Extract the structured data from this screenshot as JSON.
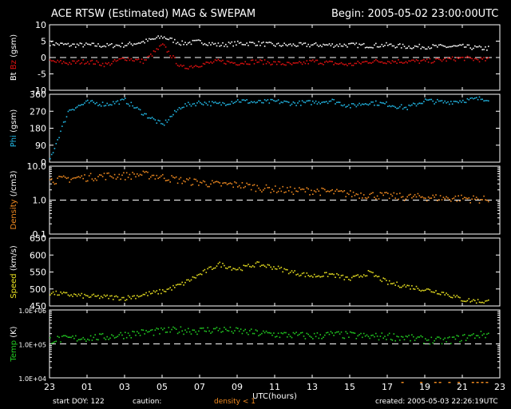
{
  "header": {
    "title": "ACE RTSW (Estimated) MAG & SWEPAM",
    "begin": "Begin: 2005-05-02 23:00:00UTC"
  },
  "footer": {
    "start_doy": "start DOY: 122",
    "caution": "caution:",
    "density_note": "density < 1",
    "created": "created: 2005-05-03 22:26:19UTC"
  },
  "colors": {
    "bt": "#ffffff",
    "bz": "#e01010",
    "phi": "#22b8e6",
    "density": "#f08a20",
    "speed": "#e8e020",
    "temp": "#22cc22",
    "axis": "#ffffff",
    "background": "#000000"
  },
  "chart_data": [
    {
      "type": "scatter",
      "ylabel_parts": [
        {
          "text": "Bt",
          "color": "#ffffff"
        },
        {
          "text": " ",
          "color": "#ffffff"
        },
        {
          "text": "Bz",
          "color": "#e01010"
        },
        {
          "text": " (gsm)",
          "color": "#ffffff"
        }
      ],
      "ylim": [
        -10,
        10
      ],
      "scale": "linear",
      "yticks": [
        10,
        5,
        0,
        -5,
        -10
      ],
      "tick_labels": [
        "10",
        "5",
        "0",
        "-5",
        "-10"
      ],
      "ref_lines": [
        0
      ],
      "series": [
        {
          "name": "Bt",
          "x": [
            0,
            1,
            2,
            3,
            4,
            5,
            6,
            7,
            8,
            9,
            10,
            11,
            12,
            13,
            14,
            15,
            16,
            17,
            18,
            19,
            20,
            21,
            22,
            23
          ],
          "values": [
            4.5,
            4,
            4,
            3.8,
            4,
            5,
            6.5,
            4.5,
            5,
            4,
            4.5,
            4.5,
            4,
            4,
            4,
            4,
            4,
            3.8,
            4,
            3.5,
            3.5,
            3.5,
            3.5,
            3
          ]
        },
        {
          "name": "Bz",
          "x": [
            0,
            1,
            2,
            3,
            4,
            5,
            6,
            7,
            8,
            9,
            10,
            11,
            12,
            13,
            14,
            15,
            16,
            17,
            18,
            19,
            20,
            21,
            22,
            23
          ],
          "values": [
            -1,
            -1.5,
            -1,
            -2,
            0,
            -1,
            4,
            -3,
            -2,
            -1,
            -1.5,
            -1,
            -1.5,
            -2,
            -1,
            -1.5,
            -2,
            -1,
            -1,
            -1,
            -1,
            -0.5,
            0,
            -0.5
          ]
        }
      ]
    },
    {
      "type": "scatter",
      "ylabel_parts": [
        {
          "text": "Phi",
          "color": "#22b8e6"
        },
        {
          "text": " (gsm)",
          "color": "#ffffff"
        }
      ],
      "ylim": [
        0,
        360
      ],
      "scale": "linear",
      "yticks": [
        360,
        270,
        180,
        90,
        0
      ],
      "tick_labels": [
        "360",
        "270",
        "180",
        "90",
        "0"
      ],
      "ref_lines": [],
      "series": [
        {
          "name": "Phi",
          "x": [
            0,
            1,
            2,
            3,
            4,
            5,
            6,
            7,
            8,
            9,
            10,
            11,
            12,
            13,
            14,
            15,
            16,
            17,
            18,
            19,
            20,
            21,
            22,
            23
          ],
          "values": [
            20,
            280,
            320,
            310,
            330,
            260,
            200,
            300,
            320,
            310,
            330,
            320,
            325,
            315,
            320,
            330,
            300,
            320,
            310,
            290,
            330,
            320,
            330,
            340
          ]
        }
      ]
    },
    {
      "type": "scatter",
      "ylabel_parts": [
        {
          "text": "Density",
          "color": "#f08a20"
        },
        {
          "text": " (/cm3)",
          "color": "#ffffff"
        }
      ],
      "ylim": [
        0.1,
        10
      ],
      "scale": "log",
      "yticks": [
        10,
        1,
        0.1
      ],
      "tick_labels": [
        "10.0",
        "1.0",
        "0.1"
      ],
      "ref_lines": [
        1
      ],
      "series": [
        {
          "name": "Density",
          "x": [
            0,
            1,
            2,
            3,
            4,
            5,
            6,
            7,
            8,
            9,
            10,
            11,
            12,
            13,
            14,
            15,
            16,
            17,
            18,
            19,
            20,
            21,
            22,
            23
          ],
          "values": [
            4,
            4.5,
            5,
            5.5,
            5.5,
            6,
            5,
            4,
            3.5,
            3,
            3,
            2.5,
            2.2,
            2,
            2,
            1.8,
            1.6,
            1.5,
            1.4,
            1.3,
            1.3,
            1.2,
            1.2,
            1.1
          ]
        }
      ]
    },
    {
      "type": "scatter",
      "ylabel_parts": [
        {
          "text": "Speed",
          "color": "#e8e020"
        },
        {
          "text": " (km/s)",
          "color": "#ffffff"
        }
      ],
      "ylim": [
        450,
        650
      ],
      "scale": "linear",
      "yticks": [
        650,
        600,
        550,
        500,
        450
      ],
      "tick_labels": [
        "650",
        "600",
        "550",
        "500",
        "450"
      ],
      "ref_lines": [],
      "series": [
        {
          "name": "Speed",
          "x": [
            0,
            1,
            2,
            3,
            4,
            5,
            6,
            7,
            8,
            9,
            10,
            11,
            12,
            13,
            14,
            15,
            16,
            17,
            18,
            19,
            20,
            21,
            22,
            23
          ],
          "values": [
            490,
            485,
            480,
            478,
            475,
            485,
            495,
            515,
            545,
            575,
            560,
            575,
            565,
            550,
            540,
            545,
            530,
            550,
            520,
            510,
            500,
            490,
            470,
            465
          ]
        }
      ]
    },
    {
      "type": "scatter",
      "ylabel_parts": [
        {
          "text": "Temp",
          "color": "#22cc22"
        },
        {
          "text": " (K)",
          "color": "#ffffff"
        }
      ],
      "ylim": [
        10000,
        1000000
      ],
      "scale": "log",
      "yticks": [
        1000000,
        100000,
        10000
      ],
      "tick_labels": [
        "1.0E+06",
        "1.0E+05",
        "1.0E+04"
      ],
      "ref_lines": [
        100000
      ],
      "series": [
        {
          "name": "Temp",
          "x": [
            0,
            1,
            2,
            3,
            4,
            5,
            6,
            7,
            8,
            9,
            10,
            11,
            12,
            13,
            14,
            15,
            16,
            17,
            18,
            19,
            20,
            21,
            22,
            23
          ],
          "values": [
            140000,
            150000,
            160000,
            170000,
            200000,
            230000,
            250000,
            270000,
            260000,
            280000,
            250000,
            220000,
            200000,
            190000,
            180000,
            200000,
            190000,
            170000,
            180000,
            160000,
            140000,
            130000,
            160000,
            200000
          ]
        }
      ]
    }
  ],
  "x_axis": {
    "xlim": [
      0,
      24
    ],
    "tick_hours": [
      0,
      2,
      4,
      6,
      8,
      10,
      12,
      14,
      16,
      18,
      20,
      22,
      24
    ],
    "tick_labels": [
      "23",
      "01",
      "03",
      "05",
      "07",
      "09",
      "11",
      "13",
      "15",
      "17",
      "19",
      "21",
      "23"
    ],
    "xlabel": "UTC(hours)"
  }
}
